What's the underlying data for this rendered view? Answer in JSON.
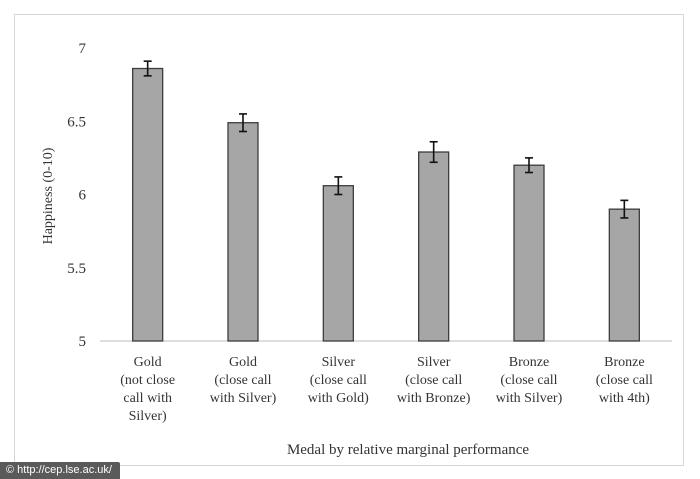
{
  "chart_data": {
    "type": "bar",
    "categories": [
      [
        "Gold",
        "(not close",
        "call with",
        "Silver)"
      ],
      [
        "Gold",
        "(close call",
        "with Silver)"
      ],
      [
        "Silver",
        "(close call",
        "with Gold)"
      ],
      [
        "Silver",
        "(close call",
        "with Bronze)"
      ],
      [
        "Bronze",
        "(close call",
        "with Silver)"
      ],
      [
        "Bronze",
        "(close call",
        "with 4th)"
      ]
    ],
    "values": [
      6.86,
      6.49,
      6.06,
      6.29,
      6.2,
      5.9
    ],
    "errors": [
      0.05,
      0.06,
      0.06,
      0.07,
      0.05,
      0.06
    ],
    "ylabel": "Happiness (0-10)",
    "xlabel": "Medal by relative marginal performance",
    "ylim": [
      5,
      7
    ],
    "yticks": [
      "5",
      "5.5",
      "6",
      "6.5",
      "7"
    ],
    "bar_color": "#a6a6a6",
    "bar_edge_color": "#3c3c3c",
    "gridlines": false,
    "legend": "none"
  },
  "credit": {
    "icon": "copyright-icon",
    "text": "© http://cep.lse.ac.uk/"
  }
}
